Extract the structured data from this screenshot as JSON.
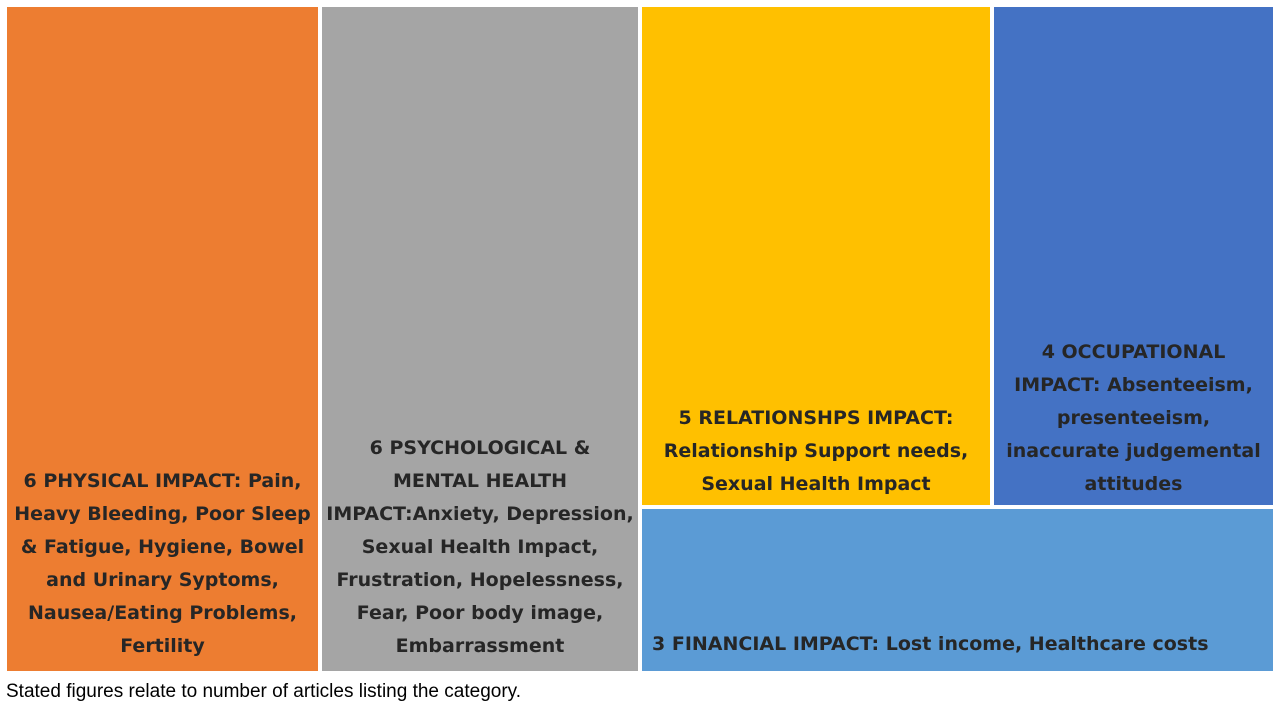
{
  "chart_data": {
    "type": "treemap",
    "tiles": [
      {
        "key": "physical",
        "value": 6,
        "label": "6 PHYSICAL IMPACT: Pain, Heavy Bleeding, Poor Sleep & Fatigue, Hygiene, Bowel and Urinary Syptoms, Nausea/Eating Problems, Fertility",
        "color": "#ED7D31"
      },
      {
        "key": "psychological",
        "value": 6,
        "label": "6 PSYCHOLOGICAL & MENTAL HEALTH IMPACT:Anxiety, Depression, Sexual Health Impact, Frustration, Hopelessness, Fear, Poor body image, Embarrassment",
        "color": "#A5A5A5"
      },
      {
        "key": "relationships",
        "value": 5,
        "label": "5 RELATIONSHPS IMPACT: Relationship Support needs, Sexual Health Impact",
        "color": "#FFC000"
      },
      {
        "key": "occupational",
        "value": 4,
        "label": "4 OCCUPATIONAL IMPACT: Absenteeism, presenteeism, inaccurate judgemental attitudes",
        "color": "#4472C4"
      },
      {
        "key": "financial",
        "value": 3,
        "label": "3 FINANCIAL IMPACT: Lost income, Healthcare costs",
        "color": "#5B9BD5"
      }
    ]
  },
  "footnote": "Stated figures relate to number of articles listing the category."
}
